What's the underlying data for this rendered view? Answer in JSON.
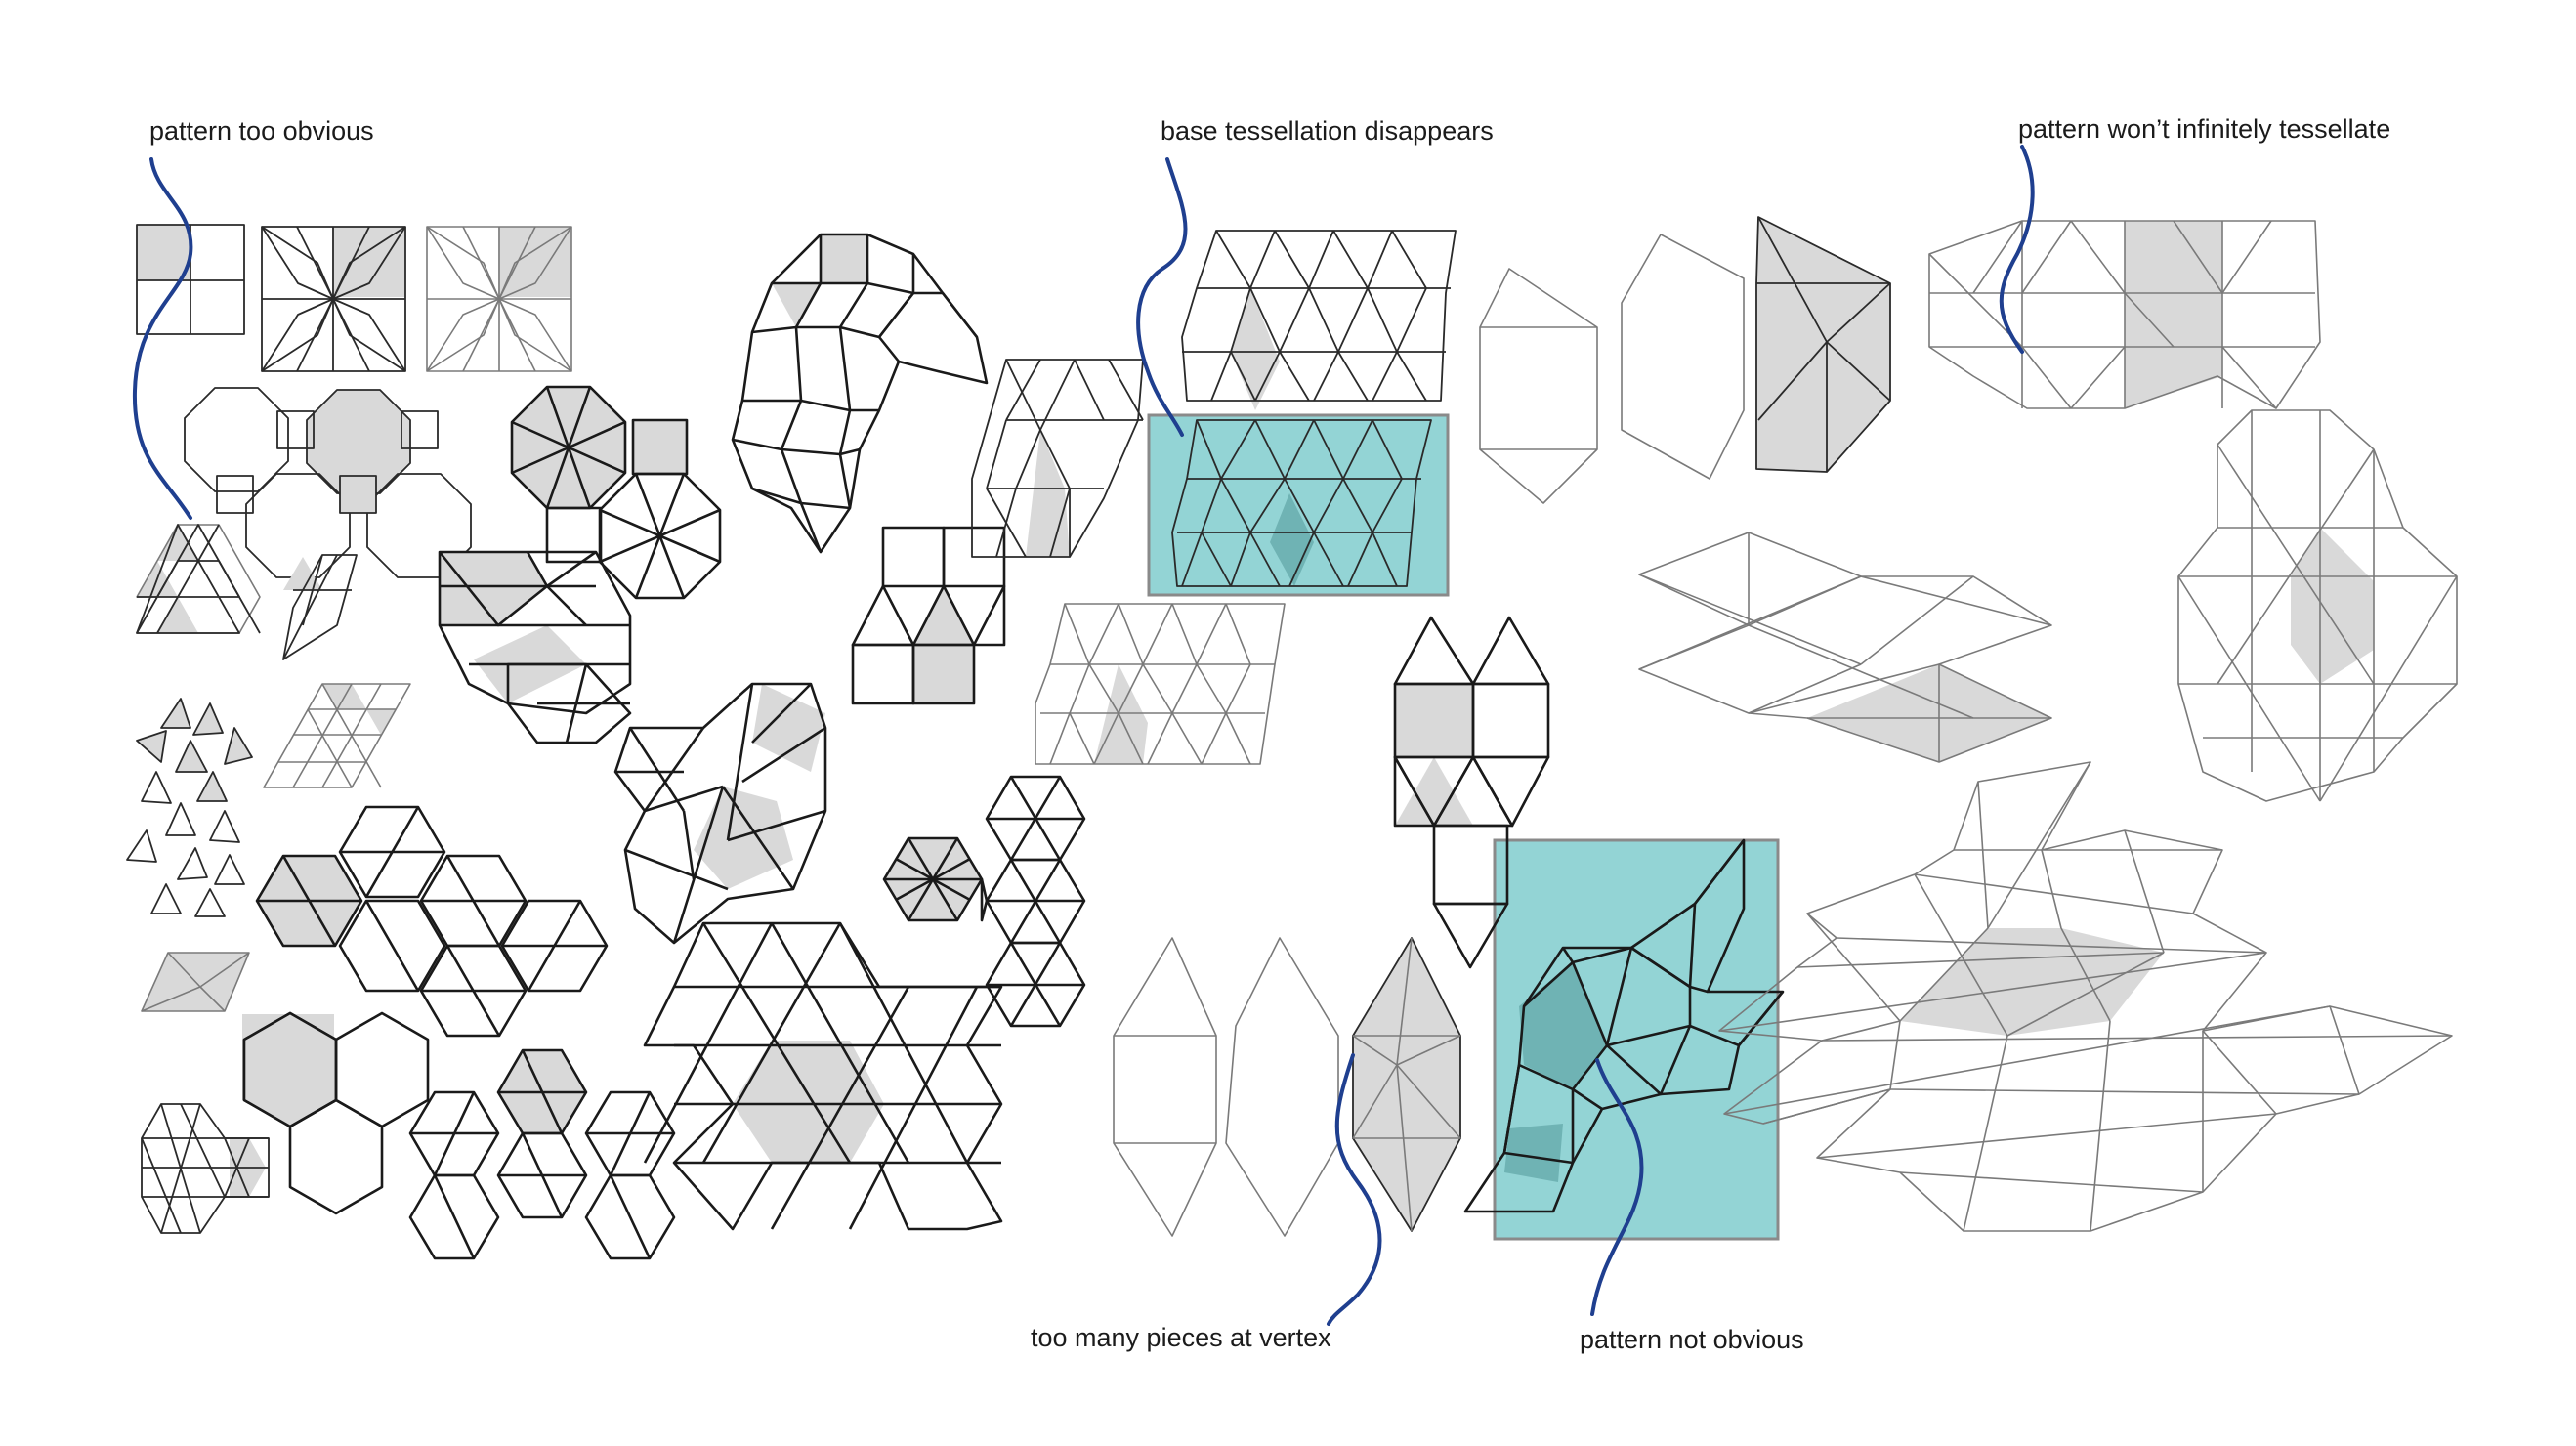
{
  "annotations": [
    {
      "id": "pattern-too-obvious",
      "text": "pattern too obvious"
    },
    {
      "id": "base-tessellation-disappears",
      "text": "base tessellation disappears"
    },
    {
      "id": "pattern-wont-tessellate",
      "text": "pattern won’t infinitely tessellate"
    },
    {
      "id": "too-many-pieces",
      "text": "too many pieces at vertex"
    },
    {
      "id": "pattern-not-obvious",
      "text": "pattern not obvious"
    }
  ],
  "colors": {
    "highlight": "#93d4d5",
    "leader_line": "#1f3f8f",
    "shade": "#d9d9d9",
    "line": "#1a1a1a"
  }
}
